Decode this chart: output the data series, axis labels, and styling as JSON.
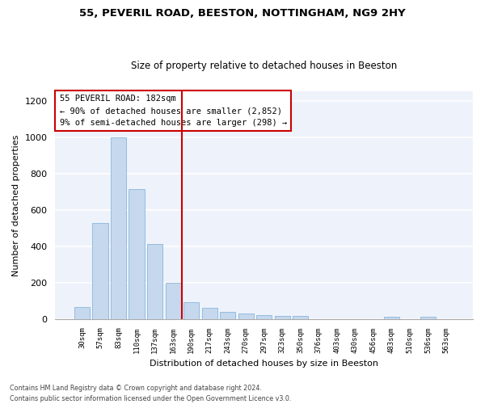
{
  "title_line1": "55, PEVERIL ROAD, BEESTON, NOTTINGHAM, NG9 2HY",
  "title_line2": "Size of property relative to detached houses in Beeston",
  "xlabel": "Distribution of detached houses by size in Beeston",
  "ylabel": "Number of detached properties",
  "bar_color": "#c5d8ee",
  "bar_edge_color": "#7aadd4",
  "vline_color": "#cc0000",
  "vline_x_index": 6,
  "annotation_text": "55 PEVERIL ROAD: 182sqm\n← 90% of detached houses are smaller (2,852)\n9% of semi-detached houses are larger (298) →",
  "annotation_box_color": "#cc0000",
  "categories": [
    "30sqm",
    "57sqm",
    "83sqm",
    "110sqm",
    "137sqm",
    "163sqm",
    "190sqm",
    "217sqm",
    "243sqm",
    "270sqm",
    "297sqm",
    "323sqm",
    "350sqm",
    "376sqm",
    "403sqm",
    "430sqm",
    "456sqm",
    "483sqm",
    "510sqm",
    "536sqm",
    "563sqm"
  ],
  "values": [
    65,
    527,
    1000,
    715,
    410,
    197,
    90,
    60,
    40,
    30,
    20,
    18,
    18,
    0,
    0,
    0,
    0,
    10,
    0,
    10,
    0
  ],
  "ylim": [
    0,
    1250
  ],
  "yticks": [
    0,
    200,
    400,
    600,
    800,
    1000,
    1200
  ],
  "footnote": "Contains HM Land Registry data © Crown copyright and database right 2024.\nContains public sector information licensed under the Open Government Licence v3.0.",
  "background_color": "#eef2fb"
}
